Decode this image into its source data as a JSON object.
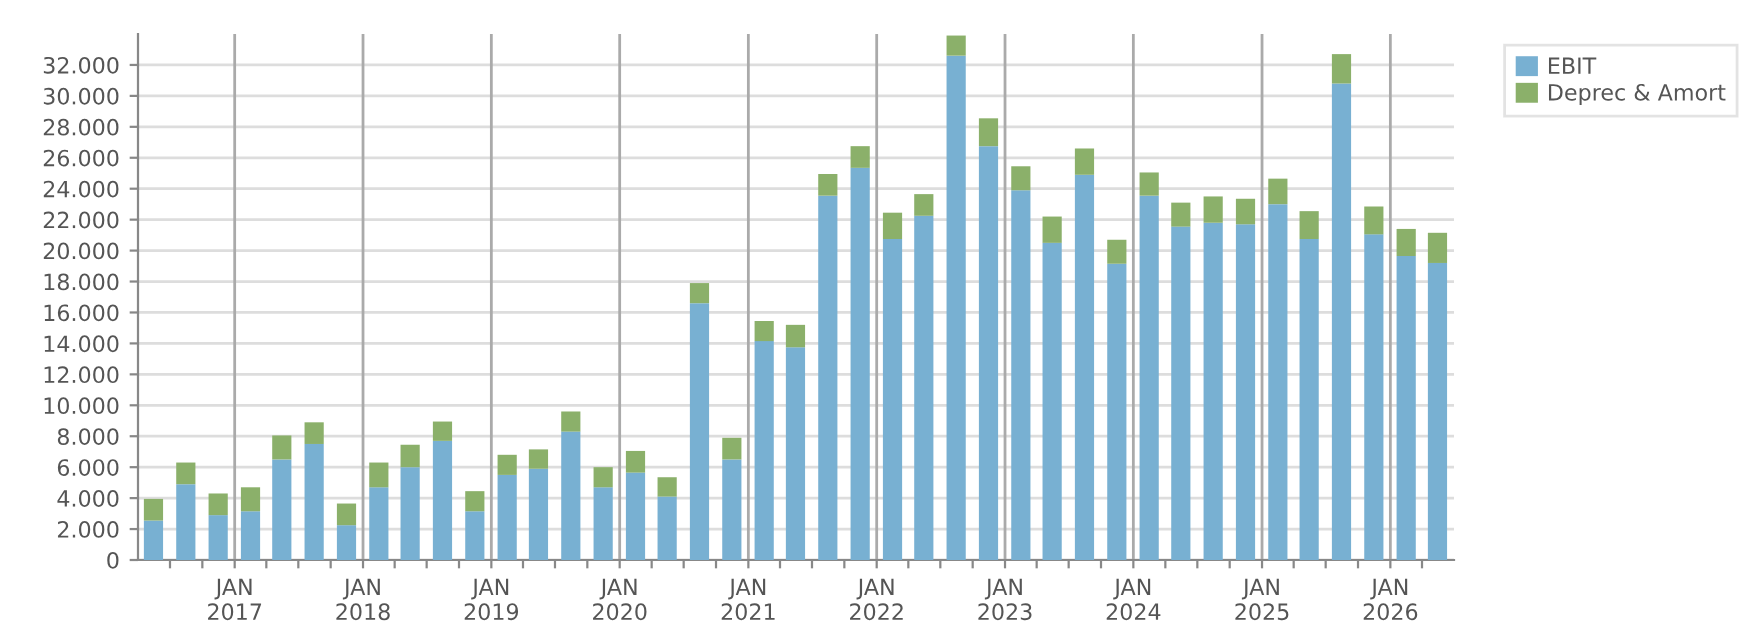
{
  "chart_data": {
    "type": "bar",
    "stacked": true,
    "x": [
      "2016-05-15",
      "2016-08-15",
      "2016-11-15",
      "2017-02-15",
      "2017-05-15",
      "2017-08-15",
      "2017-11-15",
      "2018-02-15",
      "2018-05-15",
      "2018-08-15",
      "2018-11-15",
      "2019-02-15",
      "2019-05-15",
      "2019-08-15",
      "2019-11-15",
      "2020-02-15",
      "2020-05-15",
      "2020-08-15",
      "2020-11-15",
      "2021-02-15",
      "2021-05-15",
      "2021-08-15",
      "2021-11-15",
      "2022-02-15",
      "2022-05-15",
      "2022-08-15",
      "2022-11-15",
      "2023-02-15",
      "2023-05-15",
      "2023-08-15",
      "2023-11-15",
      "2024-02-15",
      "2024-05-15",
      "2024-08-15",
      "2024-11-15",
      "2025-02-15",
      "2025-05-15",
      "2025-08-15",
      "2025-11-15",
      "2026-02-15",
      "2026-05-15"
    ],
    "series": [
      {
        "name": "EBIT",
        "color": "#78b0d2",
        "values": [
          2550,
          4900,
          2900,
          3150,
          6500,
          7500,
          2250,
          4700,
          6000,
          7700,
          3150,
          5500,
          5900,
          8300,
          4700,
          5650,
          4100,
          16600,
          6500,
          14150,
          13750,
          23550,
          25350,
          20750,
          22250,
          32600,
          26750,
          23900,
          20500,
          24900,
          19150,
          23550,
          21550,
          21800,
          21700,
          23000,
          20750,
          30800,
          21050,
          19650,
          19200
        ]
      },
      {
        "name": "Deprec & Amort",
        "color": "#8bb06a",
        "values": [
          1400,
          1400,
          1400,
          1550,
          1550,
          1400,
          1400,
          1600,
          1450,
          1250,
          1300,
          1300,
          1250,
          1300,
          1300,
          1400,
          1250,
          1300,
          1400,
          1300,
          1450,
          1400,
          1400,
          1700,
          1400,
          1300,
          1800,
          1550,
          1700,
          1700,
          1550,
          1500,
          1550,
          1700,
          1650,
          1650,
          1800,
          1900,
          1800,
          1750,
          1950
        ]
      }
    ],
    "xlim": [
      "2016-04-01",
      "2026-07-01"
    ],
    "xticks": [
      {
        "value": "2016-07-01",
        "label": null
      },
      {
        "value": "2016-10-01",
        "label": null
      },
      {
        "value": "2017-01-01",
        "label": "JAN\n2017"
      },
      {
        "value": "2017-04-01",
        "label": null
      },
      {
        "value": "2017-07-01",
        "label": null
      },
      {
        "value": "2017-10-01",
        "label": null
      },
      {
        "value": "2018-01-01",
        "label": "JAN\n2018"
      },
      {
        "value": "2018-04-01",
        "label": null
      },
      {
        "value": "2018-07-01",
        "label": null
      },
      {
        "value": "2018-10-01",
        "label": null
      },
      {
        "value": "2019-01-01",
        "label": "JAN\n2019"
      },
      {
        "value": "2019-04-01",
        "label": null
      },
      {
        "value": "2019-07-01",
        "label": null
      },
      {
        "value": "2019-10-01",
        "label": null
      },
      {
        "value": "2020-01-01",
        "label": "JAN\n2020"
      },
      {
        "value": "2020-04-01",
        "label": null
      },
      {
        "value": "2020-07-01",
        "label": null
      },
      {
        "value": "2020-10-01",
        "label": null
      },
      {
        "value": "2021-01-01",
        "label": "JAN\n2021"
      },
      {
        "value": "2021-04-01",
        "label": null
      },
      {
        "value": "2021-07-01",
        "label": null
      },
      {
        "value": "2021-10-01",
        "label": null
      },
      {
        "value": "2022-01-01",
        "label": "JAN\n2022"
      },
      {
        "value": "2022-04-01",
        "label": null
      },
      {
        "value": "2022-07-01",
        "label": null
      },
      {
        "value": "2022-10-01",
        "label": null
      },
      {
        "value": "2023-01-01",
        "label": "JAN\n2023"
      },
      {
        "value": "2023-04-01",
        "label": null
      },
      {
        "value": "2023-07-01",
        "label": null
      },
      {
        "value": "2023-10-01",
        "label": null
      },
      {
        "value": "2024-01-01",
        "label": "JAN\n2024"
      },
      {
        "value": "2024-04-01",
        "label": null
      },
      {
        "value": "2024-07-01",
        "label": null
      },
      {
        "value": "2024-10-01",
        "label": null
      },
      {
        "value": "2025-01-01",
        "label": "JAN\n2025"
      },
      {
        "value": "2025-04-01",
        "label": null
      },
      {
        "value": "2025-07-01",
        "label": null
      },
      {
        "value": "2025-10-01",
        "label": null
      },
      {
        "value": "2026-01-01",
        "label": "JAN\n2026"
      },
      {
        "value": "2026-04-01",
        "label": null
      }
    ],
    "ylim": [
      0,
      34000
    ],
    "yticks": [
      {
        "value": 0,
        "label": "0"
      },
      {
        "value": 2000,
        "label": "2.000"
      },
      {
        "value": 4000,
        "label": "4.000"
      },
      {
        "value": 6000,
        "label": "6.000"
      },
      {
        "value": 8000,
        "label": "8.000"
      },
      {
        "value": 10000,
        "label": "10.000"
      },
      {
        "value": 12000,
        "label": "12.000"
      },
      {
        "value": 14000,
        "label": "14.000"
      },
      {
        "value": 16000,
        "label": "16.000"
      },
      {
        "value": 18000,
        "label": "18.000"
      },
      {
        "value": 20000,
        "label": "20.000"
      },
      {
        "value": 22000,
        "label": "22.000"
      },
      {
        "value": 24000,
        "label": "24.000"
      },
      {
        "value": 26000,
        "label": "26.000"
      },
      {
        "value": 28000,
        "label": "28.000"
      },
      {
        "value": 30000,
        "label": "30.000"
      },
      {
        "value": 32000,
        "label": "32.000"
      }
    ],
    "grid": true,
    "legend": "top right"
  }
}
